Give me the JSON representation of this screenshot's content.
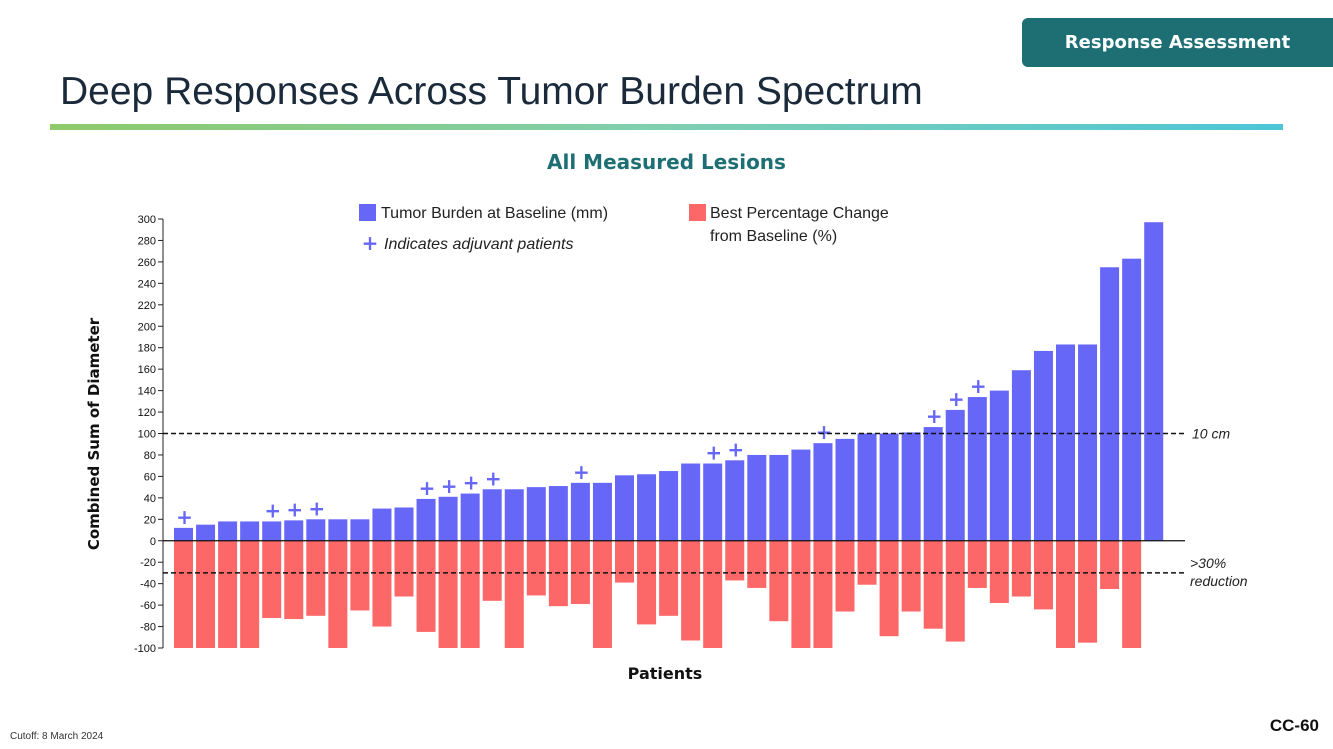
{
  "header": {
    "badge": "Response Assessment",
    "title": "Deep Responses Across Tumor Burden Spectrum"
  },
  "footer": {
    "cutoff": "Cutoff: 8 March 2024",
    "page": "CC-60"
  },
  "colors": {
    "baseline_bar": "#6667f7",
    "change_bar": "#fc6767",
    "badge": "#1e6f74",
    "plus_marker": "#6667f7"
  },
  "chart_data": {
    "type": "bar",
    "title": "All Measured Lesions",
    "xlabel": "Patients",
    "ylabel": "Combined Sum of Diameter",
    "ylim": [
      -100,
      300
    ],
    "yticks": [
      300,
      280,
      260,
      240,
      220,
      200,
      180,
      160,
      140,
      120,
      100,
      80,
      60,
      40,
      20,
      0,
      -20,
      -40,
      -60,
      -80,
      -100
    ],
    "grid": false,
    "legend_position": "top-center",
    "legend_note": "Indicates adjuvant patients",
    "series": [
      {
        "name": "Tumor Burden at Baseline (mm)",
        "values": [
          12,
          15,
          18,
          18,
          18,
          19,
          20,
          20,
          20,
          30,
          31,
          39,
          41,
          44,
          48,
          48,
          50,
          51,
          54,
          54,
          61,
          62,
          65,
          72,
          72,
          75,
          80,
          80,
          85,
          91,
          95,
          100,
          100,
          101,
          106,
          122,
          134,
          140,
          159,
          177,
          183,
          183,
          255,
          263,
          297
        ]
      },
      {
        "name": "Best Percentage Change from Baseline (%)",
        "values": [
          -100,
          -100,
          -100,
          -100,
          -72,
          -73,
          -70,
          -100,
          -65,
          -80,
          -52,
          -85,
          -100,
          -100,
          -56,
          -100,
          -51,
          -61,
          -59,
          -100,
          -39,
          -78,
          -70,
          -93,
          -100,
          -37,
          -44,
          -75,
          -100,
          -100,
          -66,
          -41,
          -89,
          -66,
          -82,
          -94,
          -44,
          -58,
          -52,
          -64,
          -100,
          -95,
          -45,
          -100,
          0
        ]
      }
    ],
    "adjuvant": [
      true,
      false,
      false,
      false,
      true,
      true,
      true,
      false,
      false,
      false,
      false,
      true,
      true,
      true,
      true,
      false,
      false,
      false,
      true,
      false,
      false,
      false,
      false,
      false,
      true,
      true,
      false,
      false,
      false,
      true,
      false,
      false,
      false,
      false,
      true,
      true,
      true,
      false,
      false,
      false,
      false,
      false,
      false,
      false,
      false
    ],
    "reference_lines": [
      {
        "value": 100,
        "label": "10 cm"
      },
      {
        "value": -30,
        "label_lines": [
          ">30%",
          "reduction"
        ]
      }
    ]
  }
}
